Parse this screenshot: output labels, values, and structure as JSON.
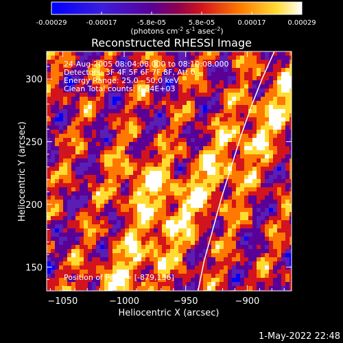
{
  "colorbar": {
    "tick_labels": [
      "-0.00029",
      "-0.00017",
      "-5.8e-05",
      "5.8e-05",
      "0.00017",
      "0.00029"
    ],
    "units_prefix": "(photons cm",
    "units_exp1": "-2",
    "units_mid": " s",
    "units_exp2": "-1",
    "units_mid2": " asec",
    "units_exp3": "-2",
    "units_suffix": ")",
    "range": [
      -0.00029,
      0.00029
    ],
    "colors": [
      "#0000ff",
      "#5a1eb4",
      "#5a0096",
      "#d2141e",
      "#ff7800",
      "#ffdc32",
      "#ffffff"
    ]
  },
  "chart_data": {
    "type": "heatmap",
    "title": "Reconstructed RHESSI Image",
    "xlabel": "Heliocentric X (arcsec)",
    "ylabel": "Heliocentric Y (arcsec)",
    "xlim": [
      -1063,
      -864
    ],
    "ylim": [
      131,
      322
    ],
    "x_ticks": [
      -1050,
      -1000,
      -950,
      -900
    ],
    "x_tick_labels": [
      "−1050",
      "−1000",
      "−950",
      "−900"
    ],
    "y_ticks": [
      150,
      200,
      250,
      300
    ],
    "y_tick_labels": [
      "150",
      "200",
      "250",
      "300"
    ],
    "limb_curve": {
      "x": [
        -940,
        -935,
        -928,
        -921,
        -913,
        -905,
        -896,
        -888,
        -878
      ],
      "y": [
        131,
        155,
        180,
        205,
        230,
        255,
        280,
        300,
        322
      ]
    },
    "peak": [
      -879,
      136
    ],
    "annotations": {
      "time": "24-Aug-2005 08:04:08.000 to 08:10:08.000",
      "detectors": "Detectors: 3F 4F 5F 6F 7F 8F, Att 0",
      "energy": "Energy Range: 25.0 - 50.0 keV",
      "clean": "Clean     Total counts: 6.84E+03",
      "peak_label": "Position of Peak = [-879,136]"
    }
  },
  "footer": {
    "timestamp": "1-May-2022 22:48"
  }
}
